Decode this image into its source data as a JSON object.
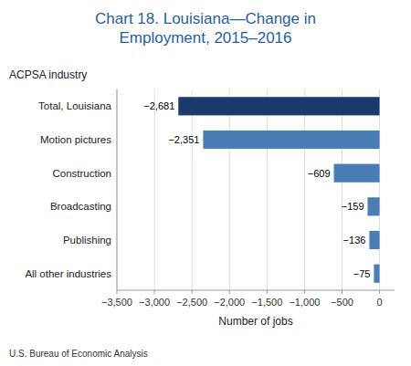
{
  "chart_data": {
    "type": "bar",
    "orientation": "horizontal",
    "title": "Chart 18. Louisiana—Change in\nEmployment, 2015–2016",
    "y_label": "ACPSA industry",
    "x_label": "Number of jobs",
    "footnote": "U.S. Bureau of Economic Analysis",
    "categories": [
      "All other industries",
      "Publishing",
      "Broadcasting",
      "Construction",
      "Motion pictures",
      "Total, Louisiana"
    ],
    "values": [
      -75,
      -136,
      -159,
      -609,
      -2351,
      -2681
    ],
    "value_labels": [
      "−75",
      "−136",
      "−159",
      "−609",
      "−2,351",
      "−2,681"
    ],
    "data_labels": true,
    "colors": [
      "#4a7db5",
      "#4a7db5",
      "#4a7db5",
      "#4a7db5",
      "#4a7db5",
      "#1a3a6b"
    ],
    "xlim": [
      -3500,
      200
    ],
    "xticks": [
      {
        "value": -3500,
        "label": "−3,500"
      },
      {
        "value": -3000,
        "label": "−3,000"
      },
      {
        "value": -2500,
        "label": "−2,500"
      },
      {
        "value": -2000,
        "label": "−2,000"
      },
      {
        "value": -1500,
        "label": "−1,500"
      },
      {
        "value": -1000,
        "label": "−1,000"
      },
      {
        "value": -500,
        "label": "−500"
      },
      0
    ],
    "grid": true
  }
}
